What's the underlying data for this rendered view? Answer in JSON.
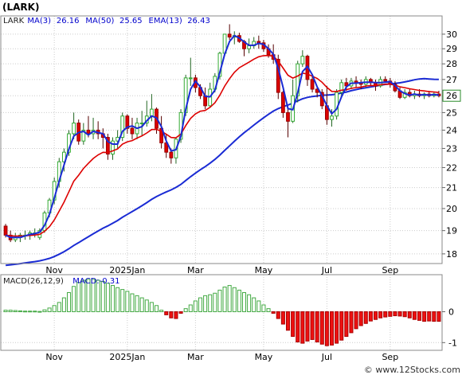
{
  "title": "(LARK)",
  "watermark": "© www.12Stocks.com",
  "chart_data": [
    {
      "type": "candlestick",
      "ticker": "LARK",
      "legend": [
        {
          "text": "LARK",
          "color": "#222222"
        },
        {
          "text": "MA(3)",
          "color": "#0000cc"
        },
        {
          "text": "26.16",
          "color": "#0000cc"
        },
        {
          "text": "MA(50)",
          "color": "#0000cc"
        },
        {
          "text": "25.65",
          "color": "#0000cc"
        },
        {
          "text": "EMA(13)",
          "color": "#0000cc"
        },
        {
          "text": "26.43",
          "color": "#0000cc"
        }
      ],
      "last_price": "26",
      "y_ticks": [
        "30",
        "29",
        "28",
        "27",
        "26",
        "25",
        "24",
        "23",
        "22",
        "21",
        "20",
        "19",
        "18"
      ],
      "y_tick_values": [
        30,
        29,
        28,
        27,
        26,
        25,
        24,
        23,
        22,
        21,
        20,
        19,
        18
      ],
      "y_scale": "log",
      "ylim": [
        17.6,
        31.3
      ],
      "x_ticks": [
        "Nov",
        "2025Jan",
        "Mar",
        "May",
        "Jul",
        "Sep"
      ],
      "x_tick_index": [
        10,
        25,
        39,
        53,
        66,
        79
      ],
      "n_bars": 90,
      "grid": true,
      "colors": {
        "up": "#33aa33",
        "down": "#dd0000",
        "ma_fast": "#1a2bd4",
        "ema": "#dd0000",
        "ma_slow": "#1a2bd4"
      },
      "candles": [
        [
          19.2,
          19.3,
          18.7,
          18.8
        ],
        [
          18.8,
          19.0,
          18.5,
          18.6
        ],
        [
          18.6,
          18.9,
          18.5,
          18.7
        ],
        [
          18.7,
          18.9,
          18.5,
          18.8
        ],
        [
          18.8,
          19.0,
          18.6,
          18.8
        ],
        [
          18.8,
          19.0,
          18.6,
          18.9
        ],
        [
          18.9,
          19.1,
          18.7,
          18.9
        ],
        [
          18.7,
          19.1,
          18.6,
          19.0
        ],
        [
          19.0,
          19.9,
          18.9,
          19.8
        ],
        [
          19.8,
          20.5,
          19.6,
          20.4
        ],
        [
          20.4,
          21.5,
          20.2,
          21.3
        ],
        [
          21.3,
          22.5,
          21.0,
          22.3
        ],
        [
          22.3,
          23.0,
          21.8,
          22.8
        ],
        [
          22.8,
          24.0,
          22.6,
          23.8
        ],
        [
          23.8,
          25.0,
          23.5,
          24.4
        ],
        [
          24.4,
          24.6,
          23.2,
          23.4
        ],
        [
          23.4,
          24.4,
          23.2,
          24.0
        ],
        [
          24.0,
          24.8,
          23.6,
          23.8
        ],
        [
          23.8,
          24.7,
          23.5,
          24.0
        ],
        [
          24.0,
          24.5,
          23.5,
          23.8
        ],
        [
          23.8,
          24.1,
          23.0,
          23.6
        ],
        [
          23.6,
          23.8,
          22.4,
          22.7
        ],
        [
          22.7,
          23.6,
          22.4,
          23.4
        ],
        [
          23.4,
          24.0,
          23.0,
          23.6
        ],
        [
          23.6,
          25.0,
          23.4,
          24.8
        ],
        [
          24.8,
          24.9,
          23.8,
          24.1
        ],
        [
          24.1,
          24.7,
          23.5,
          23.8
        ],
        [
          23.8,
          24.7,
          23.5,
          24.4
        ],
        [
          24.4,
          25.1,
          23.7,
          24.4
        ],
        [
          24.4,
          25.7,
          24.2,
          24.8
        ],
        [
          24.8,
          26.1,
          24.5,
          25.2
        ],
        [
          25.2,
          25.3,
          23.8,
          24.1
        ],
        [
          24.1,
          24.8,
          23.0,
          23.3
        ],
        [
          23.3,
          23.8,
          22.5,
          22.8
        ],
        [
          22.8,
          23.0,
          22.2,
          22.5
        ],
        [
          22.5,
          23.6,
          22.2,
          23.5
        ],
        [
          23.5,
          25.2,
          23.3,
          25.0
        ],
        [
          25.0,
          27.3,
          24.8,
          27.1
        ],
        [
          27.1,
          28.4,
          26.6,
          27.1
        ],
        [
          27.1,
          27.3,
          26.2,
          26.5
        ],
        [
          26.5,
          26.7,
          25.8,
          26.0
        ],
        [
          26.0,
          26.5,
          25.2,
          25.4
        ],
        [
          25.4,
          26.8,
          25.3,
          26.4
        ],
        [
          26.4,
          27.4,
          26.2,
          27.2
        ],
        [
          27.2,
          28.8,
          27.0,
          28.7
        ],
        [
          28.7,
          30.0,
          28.5,
          30.0
        ],
        [
          30.0,
          30.7,
          29.6,
          29.8
        ],
        [
          29.8,
          30.2,
          29.3,
          29.9
        ],
        [
          29.9,
          30.1,
          29.4,
          29.5
        ],
        [
          29.5,
          29.6,
          28.5,
          29.0
        ],
        [
          29.0,
          29.7,
          28.7,
          29.2
        ],
        [
          29.2,
          29.8,
          29.0,
          29.5
        ],
        [
          29.5,
          29.9,
          29.0,
          29.4
        ],
        [
          29.4,
          29.6,
          28.8,
          29.0
        ],
        [
          29.0,
          29.3,
          28.4,
          28.6
        ],
        [
          28.6,
          29.3,
          28.0,
          28.3
        ],
        [
          28.3,
          28.6,
          25.8,
          26.2
        ],
        [
          26.2,
          26.3,
          24.7,
          25.0
        ],
        [
          25.0,
          25.4,
          23.6,
          24.5
        ],
        [
          24.5,
          27.0,
          24.4,
          26.0
        ],
        [
          26.0,
          28.2,
          25.6,
          28.0
        ],
        [
          28.0,
          28.9,
          27.8,
          28.5
        ],
        [
          28.5,
          28.6,
          26.6,
          27.0
        ],
        [
          27.0,
          27.2,
          26.2,
          26.4
        ],
        [
          26.4,
          26.6,
          25.9,
          26.2
        ],
        [
          26.2,
          26.4,
          25.2,
          25.4
        ],
        [
          25.4,
          26.6,
          24.3,
          24.6
        ],
        [
          24.6,
          25.2,
          24.2,
          24.8
        ],
        [
          24.8,
          26.4,
          24.6,
          26.2
        ],
        [
          26.2,
          27.0,
          25.9,
          26.8
        ],
        [
          26.8,
          27.1,
          26.3,
          26.6
        ],
        [
          26.6,
          27.1,
          26.4,
          26.9
        ],
        [
          26.9,
          27.2,
          26.5,
          26.8
        ],
        [
          26.8,
          27.0,
          26.4,
          26.7
        ],
        [
          26.7,
          27.2,
          26.5,
          27.0
        ],
        [
          27.0,
          27.1,
          26.6,
          26.8
        ],
        [
          26.8,
          27.0,
          26.3,
          26.6
        ],
        [
          26.6,
          27.2,
          26.5,
          27.0
        ],
        [
          27.0,
          27.2,
          26.8,
          26.9
        ],
        [
          26.9,
          27.1,
          26.5,
          26.7
        ],
        [
          26.7,
          26.9,
          26.2,
          26.3
        ],
        [
          26.3,
          26.5,
          25.8,
          25.9
        ],
        [
          25.9,
          26.4,
          25.8,
          26.2
        ],
        [
          26.2,
          26.4,
          25.9,
          26.0
        ],
        [
          26.0,
          26.3,
          25.8,
          26.1
        ],
        [
          26.1,
          26.4,
          25.9,
          26.0
        ],
        [
          26.0,
          26.2,
          25.8,
          26.1
        ],
        [
          26.1,
          26.3,
          25.9,
          26.0
        ],
        [
          26.0,
          26.2,
          25.9,
          26.1
        ],
        [
          26.1,
          26.3,
          25.9,
          26.0
        ]
      ]
    },
    {
      "type": "bar",
      "legend": [
        {
          "text": "MACD(26,12,9)",
          "color": "#222222"
        },
        {
          "text": "MACD:-0.31",
          "color": "#0000cc"
        }
      ],
      "y_ticks": [
        "0",
        "-1"
      ],
      "y_tick_values": [
        0,
        -1
      ],
      "ylim": [
        -1.25,
        1.2
      ],
      "x_ticks": [
        "Nov",
        "2025Jan",
        "Mar",
        "May",
        "Jul",
        "Sep"
      ],
      "x_tick_index": [
        10,
        25,
        39,
        53,
        66,
        79
      ],
      "grid": true,
      "colors": {
        "positive": "#44aa44",
        "negative": "#ee1111"
      },
      "values": [
        0.05,
        0.05,
        0.04,
        0.03,
        0.02,
        0.02,
        0.02,
        0.01,
        0.06,
        0.12,
        0.2,
        0.3,
        0.45,
        0.62,
        0.82,
        0.95,
        1.02,
        1.05,
        1.05,
        1.02,
        0.98,
        0.92,
        0.85,
        0.78,
        0.72,
        0.66,
        0.58,
        0.52,
        0.45,
        0.38,
        0.3,
        0.2,
        0.05,
        -0.1,
        -0.2,
        -0.22,
        -0.05,
        0.1,
        0.22,
        0.35,
        0.45,
        0.52,
        0.55,
        0.6,
        0.7,
        0.8,
        0.85,
        0.78,
        0.7,
        0.62,
        0.55,
        0.45,
        0.35,
        0.22,
        0.1,
        -0.05,
        -0.22,
        -0.4,
        -0.6,
        -0.8,
        -0.98,
        -1.02,
        -0.95,
        -0.9,
        -0.98,
        -1.05,
        -1.1,
        -1.08,
        -1.02,
        -0.92,
        -0.8,
        -0.68,
        -0.55,
        -0.45,
        -0.38,
        -0.3,
        -0.25,
        -0.2,
        -0.17,
        -0.15,
        -0.13,
        -0.14,
        -0.16,
        -0.2,
        -0.25,
        -0.28,
        -0.31,
        -0.3,
        -0.31,
        -0.31
      ]
    }
  ]
}
